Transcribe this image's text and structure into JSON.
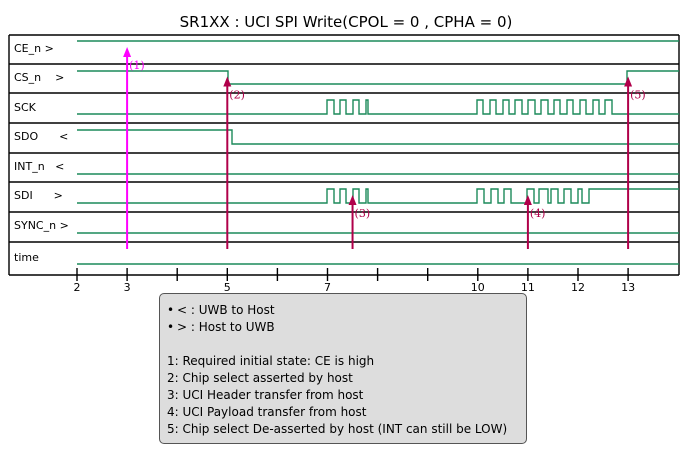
{
  "title": "SR1XX : UCI SPI Write(CPOL = 0 , CPHA = 0)",
  "colors": {
    "wave": "#1c8a5a",
    "marker_required": "#ff00ff",
    "marker": "#b0004a",
    "legend_bg": "#dddddd"
  },
  "signals": [
    {
      "name": "CE_n >"
    },
    {
      "name": "CS_n    >"
    },
    {
      "name": "SCK"
    },
    {
      "name": "SDO      <"
    },
    {
      "name": "INT_n   <"
    },
    {
      "name": "SDI      >"
    },
    {
      "name": "SYNC_n >"
    },
    {
      "name": "time"
    }
  ],
  "time_axis": {
    "min": 2,
    "max": 13.5,
    "ticks": [
      2,
      3,
      5,
      7,
      10,
      11,
      12,
      13
    ]
  },
  "annotations": [
    {
      "label": "(1)",
      "time": 3,
      "from_signal": 0,
      "to_signal": 6,
      "color": "marker_required"
    },
    {
      "label": "(2)",
      "time": 5,
      "from_signal": 1,
      "to_signal": 6,
      "color": "marker"
    },
    {
      "label": "(3)",
      "time": 7.5,
      "from_signal": 5,
      "to_signal": 6,
      "color": "marker"
    },
    {
      "label": "(4)",
      "time": 11,
      "from_signal": 5,
      "to_signal": 6,
      "color": "marker"
    },
    {
      "label": "(5)",
      "time": 13,
      "from_signal": 1,
      "to_signal": 6,
      "color": "marker"
    }
  ],
  "legend": {
    "direction": [
      {
        "text": "< : UWB to Host"
      },
      {
        "text": "> : Host to UWB"
      }
    ],
    "notes": [
      {
        "text": "1: Required initial state: CE is high"
      },
      {
        "text": "2: Chip select asserted by host"
      },
      {
        "text": "3: UCI Header transfer from host"
      },
      {
        "text": "4: UCI Payload transfer from host"
      },
      {
        "text": "5: Chip select De-asserted by host (INT can still be LOW)"
      }
    ]
  }
}
